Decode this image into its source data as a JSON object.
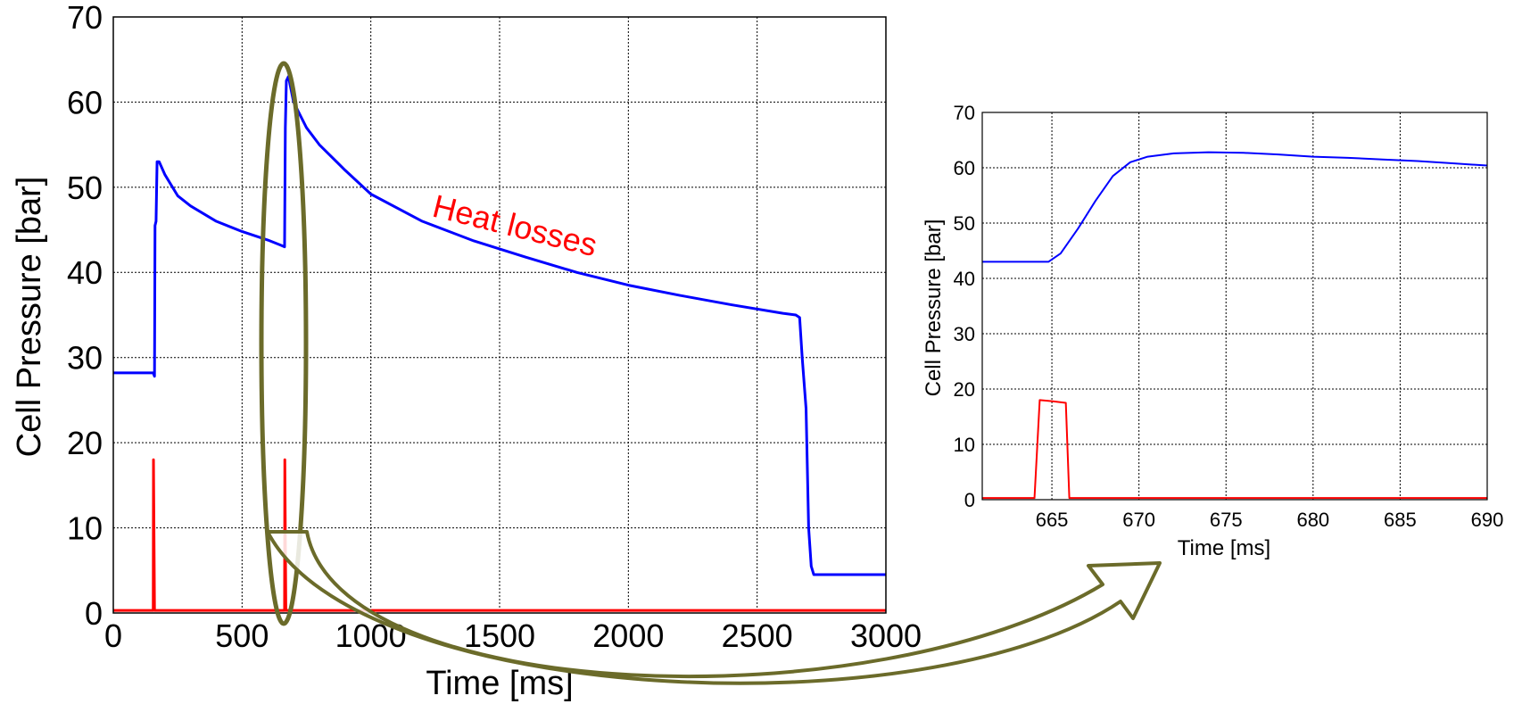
{
  "chart_data": [
    {
      "type": "line",
      "xlabel": "Time [ms]",
      "ylabel": "Cell Pressure [bar]",
      "xlim": [
        0,
        3000
      ],
      "ylim": [
        0,
        70
      ],
      "xticks": [
        "0",
        "500",
        "1000",
        "1500",
        "2000",
        "2500",
        "3000"
      ],
      "yticks": [
        "0",
        "10",
        "20",
        "30",
        "40",
        "50",
        "60",
        "70"
      ],
      "grid": true,
      "annotation": "Heat losses",
      "series": [
        {
          "color": "#0000ff",
          "points": [
            [
              0,
              28.2
            ],
            [
              155,
              28.2
            ],
            [
              160,
              27.8
            ],
            [
              162,
              45.5
            ],
            [
              166,
              46
            ],
            [
              170,
              53
            ],
            [
              178,
              53
            ],
            [
              200,
              51.5
            ],
            [
              250,
              49
            ],
            [
              300,
              47.8
            ],
            [
              400,
              46
            ],
            [
              500,
              44.8
            ],
            [
              600,
              43.8
            ],
            [
              650,
              43.2
            ],
            [
              665,
              43
            ],
            [
              668,
              57
            ],
            [
              672,
              62.5
            ],
            [
              680,
              63
            ],
            [
              700,
              60
            ],
            [
              750,
              57
            ],
            [
              800,
              55
            ],
            [
              900,
              52
            ],
            [
              1000,
              49.2
            ],
            [
              1200,
              46
            ],
            [
              1400,
              43.7
            ],
            [
              1600,
              41.8
            ],
            [
              1800,
              40
            ],
            [
              2000,
              38.5
            ],
            [
              2200,
              37.3
            ],
            [
              2400,
              36.2
            ],
            [
              2600,
              35.2
            ],
            [
              2650,
              35
            ],
            [
              2665,
              34.7
            ],
            [
              2675,
              30
            ],
            [
              2690,
              24
            ],
            [
              2700,
              10
            ],
            [
              2710,
              5.5
            ],
            [
              2720,
              4.5
            ],
            [
              3000,
              4.5
            ]
          ]
        },
        {
          "color": "#ff0000",
          "points": [
            [
              0,
              0.3
            ],
            [
              155,
              0.3
            ],
            [
              156,
              18
            ],
            [
              160,
              0.3
            ],
            [
              665,
              0.3
            ],
            [
              666,
              18
            ],
            [
              670,
              0.3
            ],
            [
              3000,
              0.3
            ]
          ]
        }
      ]
    },
    {
      "type": "line",
      "xlabel": "Time [ms]",
      "ylabel": "Cell Pressure [bar]",
      "xlim": [
        661,
        690
      ],
      "ylim": [
        0,
        70
      ],
      "xticks": [
        "665",
        "670",
        "675",
        "680",
        "685",
        "690"
      ],
      "yticks": [
        "0",
        "10",
        "20",
        "30",
        "40",
        "50",
        "60",
        "70"
      ],
      "grid": true,
      "series": [
        {
          "color": "#0000ff",
          "points": [
            [
              661,
              43
            ],
            [
              664.8,
              43
            ],
            [
              665.5,
              44.5
            ],
            [
              666.5,
              49
            ],
            [
              667.5,
              54
            ],
            [
              668.5,
              58.5
            ],
            [
              669.5,
              61
            ],
            [
              670.5,
              62
            ],
            [
              672,
              62.6
            ],
            [
              674,
              62.8
            ],
            [
              676,
              62.7
            ],
            [
              678,
              62.4
            ],
            [
              680,
              62
            ],
            [
              682,
              61.8
            ],
            [
              684,
              61.5
            ],
            [
              686,
              61.2
            ],
            [
              688,
              60.8
            ],
            [
              690,
              60.4
            ]
          ]
        },
        {
          "color": "#ff0000",
          "points": [
            [
              661,
              0.3
            ],
            [
              664,
              0.3
            ],
            [
              664.3,
              18
            ],
            [
              665,
              17.8
            ],
            [
              665.8,
              17.5
            ],
            [
              666,
              0.3
            ],
            [
              690,
              0.3
            ]
          ]
        }
      ]
    }
  ]
}
